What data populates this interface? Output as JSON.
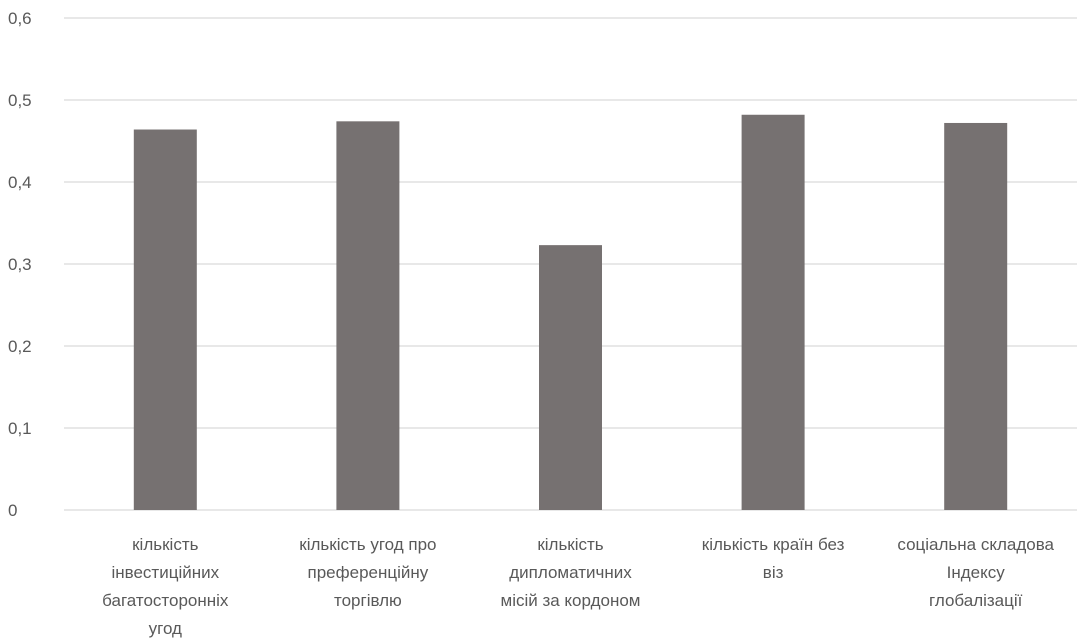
{
  "chart_data": {
    "type": "bar",
    "title": "",
    "xlabel": "",
    "ylabel": "",
    "ylim": [
      0,
      0.6
    ],
    "yticks": [
      0,
      0.1,
      0.2,
      0.3,
      0.4,
      0.5,
      0.6
    ],
    "ytick_labels": [
      "0",
      "0,1",
      "0,2",
      "0,3",
      "0,4",
      "0,5",
      "0,6"
    ],
    "grid": true,
    "bar_color": "#767171",
    "categories": [
      [
        "кількість",
        "інвестиційних",
        "багатосторонніх",
        "угод"
      ],
      [
        "кількість угод про",
        "преференційну",
        "торгівлю"
      ],
      [
        "кількість",
        "дипломатичних",
        "місій за кордоном"
      ],
      [
        "кількість країн без",
        "віз"
      ],
      [
        "соціальна складова",
        "Індексу",
        "глобалізації"
      ]
    ],
    "values": [
      0.464,
      0.474,
      0.323,
      0.482,
      0.472
    ]
  }
}
